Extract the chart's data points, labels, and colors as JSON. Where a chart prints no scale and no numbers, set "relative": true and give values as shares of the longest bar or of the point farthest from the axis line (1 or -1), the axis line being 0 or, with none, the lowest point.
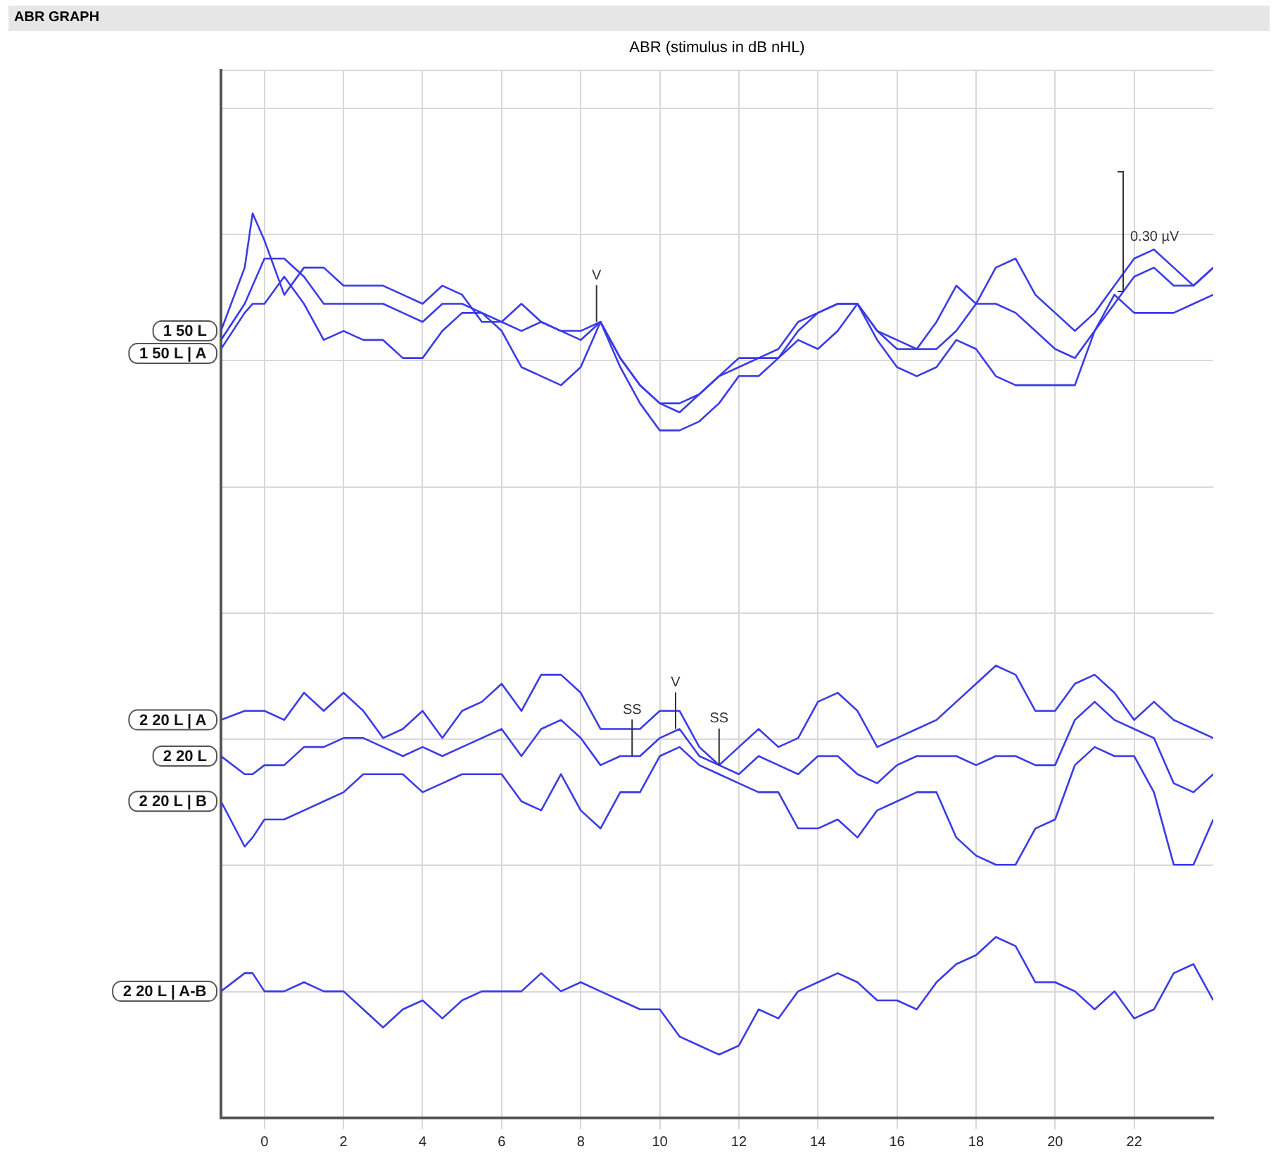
{
  "chart_data": {
    "type": "line",
    "title": "ABR GRAPH",
    "subtitle": "ABR (stimulus in dB nHL)",
    "relative": true,
    "grid": true,
    "legend": false,
    "marker": "none",
    "line_style": "solid",
    "x": [
      -1.1,
      -0.5,
      -0.3,
      0,
      0.5,
      1,
      1.5,
      2,
      2.5,
      3,
      3.5,
      4,
      4.5,
      5,
      5.5,
      6,
      6.5,
      7,
      7.5,
      8,
      8.5,
      9,
      9.5,
      10,
      10.5,
      11,
      11.5,
      12,
      12.5,
      13,
      13.5,
      14,
      14.5,
      15,
      15.5,
      16,
      16.5,
      17,
      17.5,
      18,
      18.5,
      19,
      19.5,
      20,
      20.5,
      21,
      21.5,
      22,
      22.5,
      23,
      23.5,
      24
    ],
    "xlim": [
      -1.1,
      24.0
    ],
    "xticks": [
      0,
      2,
      4,
      6,
      8,
      10,
      12,
      14,
      16,
      18,
      20,
      22
    ],
    "series": [
      {
        "name": "1 50 L",
        "color": "#3a3ae8",
        "values": [
          0.87,
          0.94,
          1.0,
          0.97,
          0.91,
          0.94,
          0.94,
          0.92,
          0.92,
          0.92,
          0.91,
          0.9,
          0.92,
          0.91,
          0.88,
          0.88,
          0.9,
          0.88,
          0.87,
          0.87,
          0.88,
          0.84,
          0.81,
          0.79,
          0.79,
          0.8,
          0.82,
          0.84,
          0.84,
          0.85,
          0.88,
          0.89,
          0.9,
          0.9,
          0.87,
          0.86,
          0.85,
          0.88,
          0.92,
          0.9,
          0.94,
          0.95,
          0.91,
          0.89,
          0.87,
          0.89,
          0.92,
          0.95,
          0.96,
          0.94,
          0.92,
          0.94
        ]
      },
      {
        "name": "1 50 L | A",
        "color": "#3a3ae8",
        "values": [
          0.86,
          0.9,
          0.92,
          0.95,
          0.95,
          0.93,
          0.9,
          0.9,
          0.9,
          0.9,
          0.89,
          0.88,
          0.9,
          0.9,
          0.89,
          0.88,
          0.87,
          0.88,
          0.87,
          0.86,
          0.88,
          0.84,
          0.81,
          0.79,
          0.78,
          0.8,
          0.82,
          0.83,
          0.84,
          0.84,
          0.87,
          0.89,
          0.9,
          0.9,
          0.87,
          0.85,
          0.85,
          0.85,
          0.87,
          0.9,
          0.9,
          0.89,
          0.87,
          0.85,
          0.84,
          0.87,
          0.9,
          0.93,
          0.94,
          0.92,
          0.92,
          0.94
        ]
      },
      {
        "color": "#3a3ae8",
        "values": [
          0.85,
          0.89,
          0.9,
          0.9,
          0.93,
          0.9,
          0.86,
          0.87,
          0.86,
          0.86,
          0.84,
          0.84,
          0.87,
          0.89,
          0.89,
          0.87,
          0.83,
          0.82,
          0.81,
          0.83,
          0.88,
          0.83,
          0.79,
          0.76,
          0.76,
          0.77,
          0.79,
          0.82,
          0.82,
          0.84,
          0.86,
          0.85,
          0.87,
          0.9,
          0.86,
          0.83,
          0.82,
          0.83,
          0.86,
          0.85,
          0.82,
          0.81,
          0.81,
          0.81,
          0.81,
          0.87,
          0.91,
          0.89,
          0.89,
          0.89,
          0.9,
          0.91
        ]
      },
      {
        "name": "2 20 L | A",
        "color": "#3a3ae8",
        "values": [
          0.44,
          0.45,
          0.45,
          0.45,
          0.44,
          0.47,
          0.45,
          0.47,
          0.45,
          0.42,
          0.43,
          0.45,
          0.42,
          0.45,
          0.46,
          0.48,
          0.45,
          0.49,
          0.49,
          0.47,
          0.43,
          0.43,
          0.43,
          0.45,
          0.45,
          0.41,
          0.39,
          0.41,
          0.43,
          0.41,
          0.42,
          0.46,
          0.47,
          0.45,
          0.41,
          0.42,
          0.43,
          0.44,
          0.46,
          0.48,
          0.5,
          0.49,
          0.45,
          0.45,
          0.48,
          0.49,
          0.47,
          0.44,
          0.46,
          0.44,
          0.43,
          0.42
        ]
      },
      {
        "name": "2 20 L",
        "color": "#3a3ae8",
        "values": [
          0.4,
          0.38,
          0.38,
          0.39,
          0.39,
          0.41,
          0.41,
          0.42,
          0.42,
          0.41,
          0.4,
          0.41,
          0.4,
          0.41,
          0.42,
          0.43,
          0.4,
          0.43,
          0.44,
          0.42,
          0.39,
          0.4,
          0.4,
          0.42,
          0.43,
          0.4,
          0.39,
          0.38,
          0.4,
          0.39,
          0.38,
          0.4,
          0.4,
          0.38,
          0.37,
          0.39,
          0.4,
          0.4,
          0.4,
          0.39,
          0.4,
          0.4,
          0.39,
          0.39,
          0.44,
          0.46,
          0.44,
          0.43,
          0.42,
          0.37,
          0.36,
          0.38
        ]
      },
      {
        "name": "2 20 L | B",
        "color": "#3a3ae8",
        "values": [
          0.35,
          0.3,
          0.31,
          0.33,
          0.33,
          0.34,
          0.35,
          0.36,
          0.38,
          0.38,
          0.38,
          0.36,
          0.37,
          0.38,
          0.38,
          0.38,
          0.35,
          0.34,
          0.38,
          0.34,
          0.32,
          0.36,
          0.36,
          0.4,
          0.41,
          0.39,
          0.38,
          0.37,
          0.36,
          0.36,
          0.32,
          0.32,
          0.33,
          0.31,
          0.34,
          0.35,
          0.36,
          0.36,
          0.31,
          0.29,
          0.28,
          0.28,
          0.32,
          0.33,
          0.39,
          0.41,
          0.4,
          0.4,
          0.36,
          0.28,
          0.28,
          0.33
        ]
      },
      {
        "name": "2 20 L | A-B",
        "color": "#3a3ae8",
        "values": [
          0.14,
          0.16,
          0.16,
          0.14,
          0.14,
          0.15,
          0.14,
          0.14,
          0.12,
          0.1,
          0.12,
          0.13,
          0.11,
          0.13,
          0.14,
          0.14,
          0.14,
          0.16,
          0.14,
          0.15,
          0.14,
          0.13,
          0.12,
          0.12,
          0.09,
          0.08,
          0.07,
          0.08,
          0.12,
          0.11,
          0.14,
          0.15,
          0.16,
          0.15,
          0.13,
          0.13,
          0.12,
          0.15,
          0.17,
          0.18,
          0.2,
          0.19,
          0.15,
          0.15,
          0.14,
          0.12,
          0.14,
          0.11,
          0.12,
          0.16,
          0.17,
          0.13
        ]
      }
    ],
    "annotations": [
      {
        "text": "V",
        "x": 8.4,
        "y": 0.88
      },
      {
        "text": "SS",
        "x": 9.3,
        "y": 0.4
      },
      {
        "text": "V",
        "x": 10.4,
        "y": 0.43
      },
      {
        "text": "SS",
        "x": 11.5,
        "y": 0.39
      },
      "0.30 µV"
    ]
  }
}
